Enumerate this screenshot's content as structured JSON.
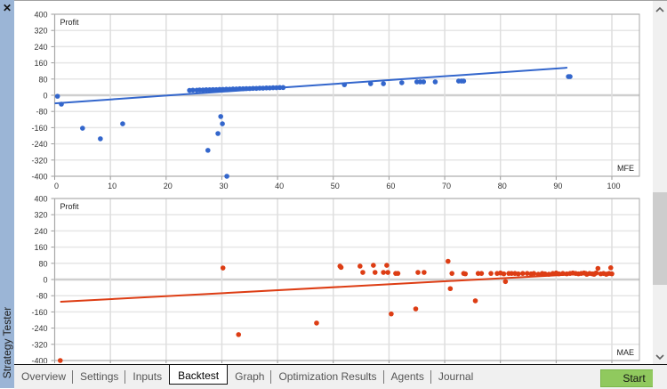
{
  "window": {
    "panel_title": "Strategy Tester",
    "close_label": "✕"
  },
  "tabs": [
    {
      "label": "Overview",
      "active": false
    },
    {
      "label": "Settings",
      "active": false
    },
    {
      "label": "Inputs",
      "active": false
    },
    {
      "label": "Backtest",
      "active": true
    },
    {
      "label": "Graph",
      "active": false
    },
    {
      "label": "Optimization Results",
      "active": false
    },
    {
      "label": "Agents",
      "active": false
    },
    {
      "label": "Journal",
      "active": false
    }
  ],
  "start_button": {
    "label": "Start",
    "color": "#90c95e"
  },
  "scrollbar": {
    "up_icon": "▲",
    "down_icon": "▼"
  },
  "chart_data": [
    {
      "type": "scatter",
      "title": "",
      "ylabel": "Profit",
      "xlabel": "MFE",
      "xlim": [
        0,
        100
      ],
      "ylim": [
        -400,
        400
      ],
      "xticks": [
        0,
        10,
        20,
        30,
        40,
        50,
        60,
        70,
        80,
        90,
        100
      ],
      "yticks": [
        400,
        320,
        240,
        160,
        80,
        0,
        -80,
        -160,
        -240,
        -320,
        -400
      ],
      "grid": true,
      "color": "#3366cc",
      "points": [
        [
          0.5,
          -5
        ],
        [
          1.2,
          -44
        ],
        [
          5,
          -163
        ],
        [
          8.2,
          -215
        ],
        [
          12.2,
          -141
        ],
        [
          27.5,
          -272
        ],
        [
          29.3,
          -189
        ],
        [
          29.8,
          -105
        ],
        [
          30.1,
          -141
        ],
        [
          30.9,
          -400
        ],
        [
          24.2,
          24
        ],
        [
          24.8,
          25
        ],
        [
          25.5,
          25
        ],
        [
          26,
          26
        ],
        [
          26.6,
          26
        ],
        [
          27.2,
          27
        ],
        [
          27.8,
          27
        ],
        [
          28.4,
          28
        ],
        [
          29,
          28
        ],
        [
          29.6,
          29
        ],
        [
          30.2,
          29
        ],
        [
          30.8,
          30
        ],
        [
          31.4,
          30
        ],
        [
          32,
          31
        ],
        [
          32.6,
          31
        ],
        [
          33.2,
          32
        ],
        [
          33.8,
          32
        ],
        [
          34.4,
          33
        ],
        [
          35,
          33
        ],
        [
          35.6,
          34
        ],
        [
          36.2,
          34
        ],
        [
          36.8,
          35
        ],
        [
          37.4,
          35
        ],
        [
          38,
          36
        ],
        [
          38.6,
          36
        ],
        [
          39.2,
          37
        ],
        [
          39.8,
          37
        ],
        [
          40.4,
          38
        ],
        [
          41,
          38
        ],
        [
          52,
          52
        ],
        [
          56.7,
          57
        ],
        [
          59,
          57
        ],
        [
          62.3,
          62
        ],
        [
          65,
          66
        ],
        [
          65.6,
          66
        ],
        [
          66.2,
          66
        ],
        [
          68.3,
          66
        ],
        [
          72.5,
          70
        ],
        [
          73,
          70
        ],
        [
          73.4,
          70
        ],
        [
          92.2,
          92
        ],
        [
          92.5,
          92
        ]
      ],
      "trendline": {
        "x": [
          0,
          92
        ],
        "y": [
          -40,
          136
        ]
      }
    },
    {
      "type": "scatter",
      "title": "",
      "ylabel": "Profit",
      "xlabel": "MAE",
      "xlim": [
        0,
        100
      ],
      "ylim": [
        -400,
        400
      ],
      "xticks": [
        0,
        10,
        20,
        30,
        40,
        50,
        60,
        70,
        80,
        90,
        100
      ],
      "yticks": [
        400,
        320,
        240,
        160,
        80,
        0,
        -80,
        -160,
        -240,
        -320,
        -400
      ],
      "grid": true,
      "color": "#dd3d14",
      "points": [
        [
          1,
          -400
        ],
        [
          30.2,
          57
        ],
        [
          33,
          -272
        ],
        [
          47,
          -215
        ],
        [
          51.2,
          66
        ],
        [
          51.4,
          60
        ],
        [
          54.8,
          66
        ],
        [
          55.3,
          35
        ],
        [
          57.2,
          70
        ],
        [
          57.5,
          35
        ],
        [
          59,
          35
        ],
        [
          59.6,
          70
        ],
        [
          59.8,
          35
        ],
        [
          60.4,
          -170
        ],
        [
          61.2,
          30
        ],
        [
          61.6,
          30
        ],
        [
          64.8,
          -145
        ],
        [
          65.2,
          35
        ],
        [
          66.3,
          35
        ],
        [
          70.6,
          90
        ],
        [
          71,
          -45
        ],
        [
          71.3,
          30
        ],
        [
          73.4,
          30
        ],
        [
          73.7,
          28
        ],
        [
          75.5,
          -105
        ],
        [
          76,
          30
        ],
        [
          76.6,
          30
        ],
        [
          78.3,
          30
        ],
        [
          79.4,
          30
        ],
        [
          80,
          32
        ],
        [
          80.6,
          28
        ],
        [
          80.9,
          -10
        ],
        [
          81.5,
          30
        ],
        [
          82,
          30
        ],
        [
          82.6,
          30
        ],
        [
          83.2,
          28
        ],
        [
          84,
          30
        ],
        [
          84.8,
          30
        ],
        [
          85.5,
          28
        ],
        [
          86,
          30
        ],
        [
          86.8,
          26
        ],
        [
          87.5,
          30
        ],
        [
          88,
          28
        ],
        [
          88.7,
          26
        ],
        [
          89.4,
          30
        ],
        [
          90,
          32
        ],
        [
          90.5,
          28
        ],
        [
          91.2,
          30
        ],
        [
          91.9,
          28
        ],
        [
          92.5,
          30
        ],
        [
          93,
          32
        ],
        [
          93.5,
          30
        ],
        [
          94,
          28
        ],
        [
          94.5,
          30
        ],
        [
          95,
          32
        ],
        [
          95.5,
          26
        ],
        [
          96,
          30
        ],
        [
          96.5,
          28
        ],
        [
          97,
          30
        ],
        [
          97.5,
          55
        ],
        [
          98,
          28
        ],
        [
          98.5,
          30
        ],
        [
          99,
          26
        ],
        [
          99.5,
          30
        ],
        [
          100,
          28
        ],
        [
          99.8,
          58
        ],
        [
          97.2,
          32
        ],
        [
          96.8,
          26
        ],
        [
          95.3,
          30
        ]
      ],
      "trendline": {
        "x": [
          1,
          100
        ],
        "y": [
          -110,
          35
        ]
      }
    }
  ]
}
